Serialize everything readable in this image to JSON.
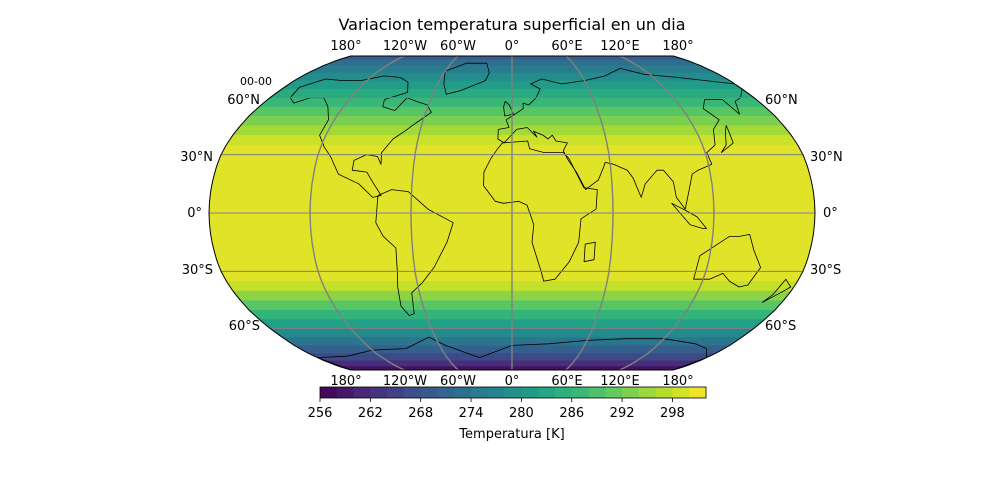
{
  "title": "Variacion temperatura superficial en un dia",
  "time_label": "00-00",
  "map": {
    "projection": "Robinson",
    "colormap": "viridis",
    "fill_color_low": "#440154",
    "fill_color_high": "#fde725",
    "gridline_color": "#808080",
    "coastline_color": "#000000",
    "lon_labels_top": [
      "180°",
      "120°W",
      "60°W",
      "0°",
      "60°E",
      "120°E",
      "180°"
    ],
    "lon_labels_bottom": [
      "180°",
      "120°W",
      "60°W",
      "0°",
      "60°E",
      "120°E",
      "180°"
    ],
    "lat_labels_left": [
      "60°N",
      "30°N",
      "0°",
      "30°S",
      "60°S"
    ],
    "lat_labels_right": [
      "60°N",
      "30°N",
      "0°",
      "30°S",
      "60°S"
    ]
  },
  "colorbar": {
    "label": "Temperatura [K]",
    "min": 256,
    "max": 302,
    "ticks": [
      "256",
      "262",
      "268",
      "274",
      "280",
      "286",
      "292",
      "298"
    ]
  }
}
